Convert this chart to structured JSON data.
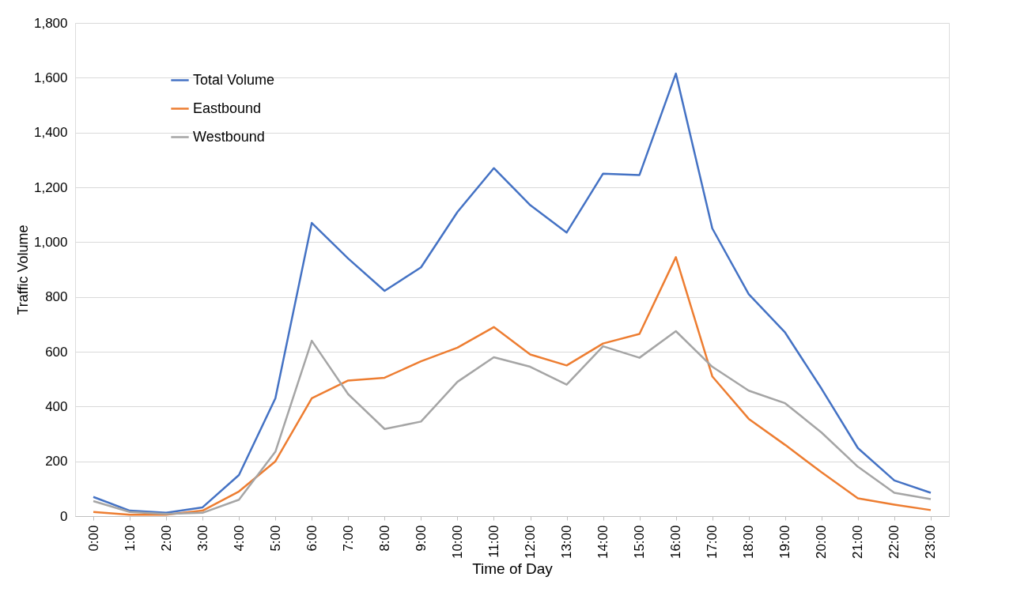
{
  "chart_data": {
    "type": "line",
    "xlabel": "Time of Day",
    "ylabel": "Traffic Volume",
    "categories": [
      "0:00",
      "1:00",
      "2:00",
      "3:00",
      "4:00",
      "5:00",
      "6:00",
      "7:00",
      "8:00",
      "9:00",
      "10:00",
      "11:00",
      "12:00",
      "13:00",
      "14:00",
      "15:00",
      "16:00",
      "17:00",
      "18:00",
      "19:00",
      "20:00",
      "21:00",
      "22:00",
      "23:00"
    ],
    "series": [
      {
        "name": "Total Volume",
        "color": "#4472c4",
        "values": [
          70,
          20,
          12,
          32,
          150,
          430,
          1070,
          940,
          822,
          908,
          1110,
          1270,
          1135,
          1035,
          1250,
          1245,
          1615,
          1050,
          810,
          670,
          465,
          248,
          130,
          85
        ]
      },
      {
        "name": "Eastbound",
        "color": "#ed7d31",
        "values": [
          15,
          5,
          5,
          20,
          90,
          200,
          430,
          495,
          505,
          565,
          615,
          690,
          590,
          550,
          630,
          665,
          945,
          510,
          355,
          260,
          160,
          65,
          42,
          22
        ]
      },
      {
        "name": "Westbound",
        "color": "#a5a5a5",
        "values": [
          55,
          15,
          8,
          12,
          60,
          235,
          640,
          445,
          318,
          345,
          490,
          580,
          545,
          480,
          620,
          578,
          675,
          545,
          458,
          412,
          305,
          180,
          85,
          62
        ]
      }
    ],
    "ylim": [
      0,
      1800
    ],
    "yticks": [
      {
        "value": 0,
        "label": "0"
      },
      {
        "value": 200,
        "label": "200"
      },
      {
        "value": 400,
        "label": "400"
      },
      {
        "value": 600,
        "label": "600"
      },
      {
        "value": 800,
        "label": "800"
      },
      {
        "value": 1000,
        "label": "1,000"
      },
      {
        "value": 1200,
        "label": "1,200"
      },
      {
        "value": 1400,
        "label": "1,400"
      },
      {
        "value": 1600,
        "label": "1,600"
      },
      {
        "value": 1800,
        "label": "1,800"
      }
    ],
    "grid": "y",
    "legend": "top left",
    "marker": "none",
    "line_style": "solid"
  }
}
